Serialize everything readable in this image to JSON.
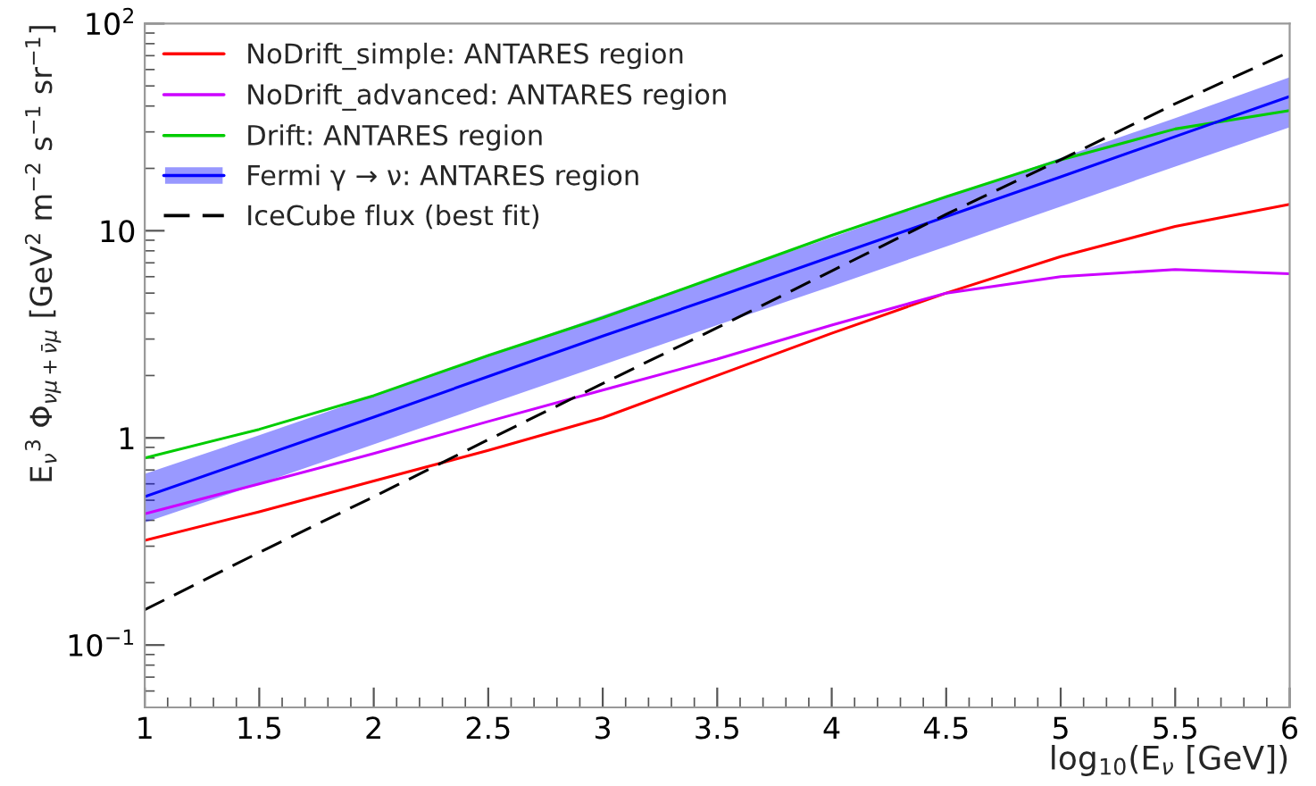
{
  "chart_data": {
    "type": "line",
    "xlabel": "log$_{10}$(E$_{ν}$ [GeV])",
    "ylabel": "E$_{ν}$$^{3}$ Φ$_{νμ+ν̄μ}$ [GeV$^{2}$ m$^{−2}$ s$^{−1}$ sr$^{−1}$]",
    "x": [
      1,
      1.5,
      2,
      2.5,
      3,
      3.5,
      4,
      4.5,
      5,
      5.5,
      6
    ],
    "series": [
      {
        "name": "NoDrift_simple: ANTARES region",
        "color": "#ff0000",
        "values": [
          0.32,
          0.44,
          0.62,
          0.87,
          1.25,
          2.0,
          3.2,
          5.0,
          7.5,
          10.5,
          13.4
        ]
      },
      {
        "name": "NoDrift_advanced: ANTARES region",
        "color": "#cc00ff",
        "values": [
          0.43,
          0.6,
          0.84,
          1.2,
          1.7,
          2.4,
          3.5,
          5.0,
          6.0,
          6.5,
          6.2
        ]
      },
      {
        "name": "Drift: ANTARES region",
        "color": "#00cc00",
        "values": [
          0.8,
          1.1,
          1.6,
          2.5,
          3.8,
          6.0,
          9.5,
          14.6,
          22,
          31,
          38
        ]
      },
      {
        "name": "Fermi γ → ν: ANTARES region",
        "color": "#0000ff",
        "values": [
          0.52,
          0.81,
          1.26,
          1.98,
          3.1,
          4.8,
          7.5,
          11.7,
          18.2,
          28.5,
          44.5
        ],
        "lower": [
          0.39,
          0.6,
          0.93,
          1.45,
          2.25,
          3.5,
          5.4,
          8.4,
          13.1,
          20.4,
          31.6
        ],
        "upper": [
          0.67,
          1.03,
          1.6,
          2.5,
          3.9,
          6.0,
          9.3,
          14.5,
          22.5,
          35,
          55
        ]
      },
      {
        "name": "IceCube flux (best fit)",
        "color": "#000000",
        "line_style": "dashed",
        "values": [
          0.148,
          0.28,
          0.52,
          0.98,
          1.83,
          3.4,
          6.4,
          12.0,
          22,
          41,
          73
        ]
      }
    ],
    "xlim": [
      1,
      6
    ],
    "xticks": [
      1,
      1.5,
      2,
      2.5,
      3,
      3.5,
      4,
      4.5,
      5,
      5.5,
      6
    ],
    "log": "y",
    "ylim": [
      0.05,
      100
    ],
    "yticks": [
      {
        "value": 0.1,
        "label": "10$^{−1}$"
      },
      1,
      10,
      {
        "value": 100,
        "label": "10$^{2}$"
      }
    ],
    "grid": false,
    "legend": "top left",
    "marker": "none"
  }
}
